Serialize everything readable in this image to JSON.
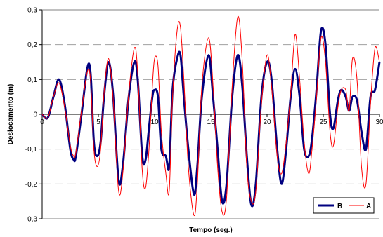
{
  "chart_data": {
    "type": "line",
    "title": "",
    "xlabel": "Tempo (seg.)",
    "ylabel": "Deslocamento (m)",
    "xlim": [
      0,
      30
    ],
    "ylim": [
      -0.3,
      0.3
    ],
    "x_ticks": [
      "0",
      "5",
      "10",
      "15",
      "20",
      "25",
      "30"
    ],
    "y_ticks": [
      "-0,3",
      "-0,2",
      "-0,1",
      "0",
      "0,1",
      "0,2",
      "0,3"
    ],
    "grid": "horizontal dashed",
    "legend_position": "bottom-right",
    "series": [
      {
        "name": "B",
        "color": "#000080",
        "points": [
          [
            0,
            0
          ],
          [
            0.5,
            -0.01
          ],
          [
            1,
            0.05
          ],
          [
            1.5,
            0.1
          ],
          [
            2,
            0.03
          ],
          [
            2.5,
            -0.1
          ],
          [
            2.8,
            -0.13
          ],
          [
            3,
            -0.12
          ],
          [
            3.5,
            0.0
          ],
          [
            4,
            0.13
          ],
          [
            4.3,
            0.12
          ],
          [
            4.6,
            -0.08
          ],
          [
            4.9,
            -0.12
          ],
          [
            5.2,
            -0.08
          ],
          [
            5.5,
            0.05
          ],
          [
            5.9,
            0.15
          ],
          [
            6.3,
            0.06
          ],
          [
            6.8,
            -0.19
          ],
          [
            7.2,
            -0.14
          ],
          [
            7.7,
            0.05
          ],
          [
            8.2,
            0.15
          ],
          [
            8.5,
            0.1
          ],
          [
            8.9,
            -0.12
          ],
          [
            9.2,
            -0.13
          ],
          [
            9.5,
            -0.04
          ],
          [
            9.8,
            0.05
          ],
          [
            10.0,
            0.07
          ],
          [
            10.3,
            0.05
          ],
          [
            10.6,
            -0.1
          ],
          [
            11.0,
            -0.12
          ],
          [
            11.3,
            -0.15
          ],
          [
            11.6,
            0.07
          ],
          [
            12.0,
            0.16
          ],
          [
            12.3,
            0.17
          ],
          [
            12.6,
            0.05
          ],
          [
            13.0,
            -0.1
          ],
          [
            13.5,
            -0.23
          ],
          [
            13.8,
            -0.15
          ],
          [
            14.2,
            0.05
          ],
          [
            14.8,
            0.17
          ],
          [
            15.2,
            0.05
          ],
          [
            15.6,
            -0.1
          ],
          [
            16.0,
            -0.25
          ],
          [
            16.4,
            -0.2
          ],
          [
            16.9,
            0.05
          ],
          [
            17.4,
            0.17
          ],
          [
            17.8,
            0.08
          ],
          [
            18.2,
            -0.12
          ],
          [
            18.6,
            -0.26
          ],
          [
            19.0,
            -0.2
          ],
          [
            19.5,
            0.05
          ],
          [
            20.0,
            0.15
          ],
          [
            20.4,
            0.1
          ],
          [
            20.9,
            -0.1
          ],
          [
            21.3,
            -0.2
          ],
          [
            21.7,
            -0.1
          ],
          [
            22.1,
            0.05
          ],
          [
            22.5,
            0.13
          ],
          [
            22.9,
            0.05
          ],
          [
            23.3,
            -0.1
          ],
          [
            23.7,
            -0.12
          ],
          [
            24.0,
            -0.07
          ],
          [
            24.4,
            0.07
          ],
          [
            24.8,
            0.24
          ],
          [
            25.2,
            0.2
          ],
          [
            25.6,
            0.0
          ],
          [
            25.9,
            -0.04
          ],
          [
            26.3,
            0.04
          ],
          [
            26.6,
            0.07
          ],
          [
            27.0,
            0.05
          ],
          [
            27.3,
            0.01
          ],
          [
            27.6,
            0.05
          ],
          [
            28.0,
            0.04
          ],
          [
            28.4,
            -0.05
          ],
          [
            28.8,
            -0.1
          ],
          [
            29.2,
            0.05
          ],
          [
            29.6,
            0.07
          ],
          [
            30.0,
            0.15
          ]
        ]
      },
      {
        "name": "A",
        "color": "#ff0000",
        "points": [
          [
            0,
            0
          ],
          [
            0.5,
            -0.01
          ],
          [
            1,
            0.05
          ],
          [
            1.5,
            0.09
          ],
          [
            2,
            0.02
          ],
          [
            2.5,
            -0.09
          ],
          [
            2.8,
            -0.12
          ],
          [
            3,
            -0.11
          ],
          [
            3.5,
            0.01
          ],
          [
            4,
            0.12
          ],
          [
            4.3,
            0.1
          ],
          [
            4.6,
            -0.1
          ],
          [
            4.9,
            -0.15
          ],
          [
            5.2,
            -0.1
          ],
          [
            5.5,
            0.06
          ],
          [
            5.9,
            0.16
          ],
          [
            6.3,
            0.05
          ],
          [
            6.8,
            -0.22
          ],
          [
            7.2,
            -0.16
          ],
          [
            7.7,
            0.06
          ],
          [
            8.2,
            0.19
          ],
          [
            8.5,
            0.12
          ],
          [
            8.9,
            -0.16
          ],
          [
            9.2,
            -0.21
          ],
          [
            9.5,
            -0.1
          ],
          [
            9.8,
            0.08
          ],
          [
            10.0,
            0.16
          ],
          [
            10.3,
            0.14
          ],
          [
            10.6,
            -0.05
          ],
          [
            11.0,
            -0.17
          ],
          [
            11.3,
            -0.22
          ],
          [
            11.6,
            0.05
          ],
          [
            12.0,
            0.24
          ],
          [
            12.3,
            0.25
          ],
          [
            12.6,
            0.1
          ],
          [
            13.0,
            -0.15
          ],
          [
            13.5,
            -0.29
          ],
          [
            13.8,
            -0.2
          ],
          [
            14.2,
            0.08
          ],
          [
            14.8,
            0.22
          ],
          [
            15.2,
            0.08
          ],
          [
            15.6,
            -0.15
          ],
          [
            16.0,
            -0.28
          ],
          [
            16.4,
            -0.24
          ],
          [
            16.9,
            0.08
          ],
          [
            17.4,
            0.28
          ],
          [
            17.8,
            0.15
          ],
          [
            18.2,
            -0.15
          ],
          [
            18.6,
            -0.25
          ],
          [
            19.0,
            -0.22
          ],
          [
            19.5,
            0.03
          ],
          [
            20.0,
            0.17
          ],
          [
            20.4,
            0.08
          ],
          [
            20.9,
            -0.12
          ],
          [
            21.3,
            -0.17
          ],
          [
            21.7,
            -0.08
          ],
          [
            22.1,
            0.06
          ],
          [
            22.5,
            0.23
          ],
          [
            22.9,
            0.1
          ],
          [
            23.3,
            -0.08
          ],
          [
            23.7,
            -0.17
          ],
          [
            24.0,
            -0.1
          ],
          [
            24.4,
            0.05
          ],
          [
            24.8,
            0.22
          ],
          [
            25.2,
            0.15
          ],
          [
            25.6,
            -0.05
          ],
          [
            25.9,
            -0.09
          ],
          [
            26.3,
            0.02
          ],
          [
            26.6,
            0.07
          ],
          [
            27.0,
            0.07
          ],
          [
            27.3,
            0.01
          ],
          [
            27.6,
            0.16
          ],
          [
            28.0,
            0.1
          ],
          [
            28.4,
            -0.15
          ],
          [
            28.8,
            -0.2
          ],
          [
            29.2,
            0.03
          ],
          [
            29.6,
            0.19
          ],
          [
            30.0,
            0.15
          ]
        ]
      }
    ]
  }
}
